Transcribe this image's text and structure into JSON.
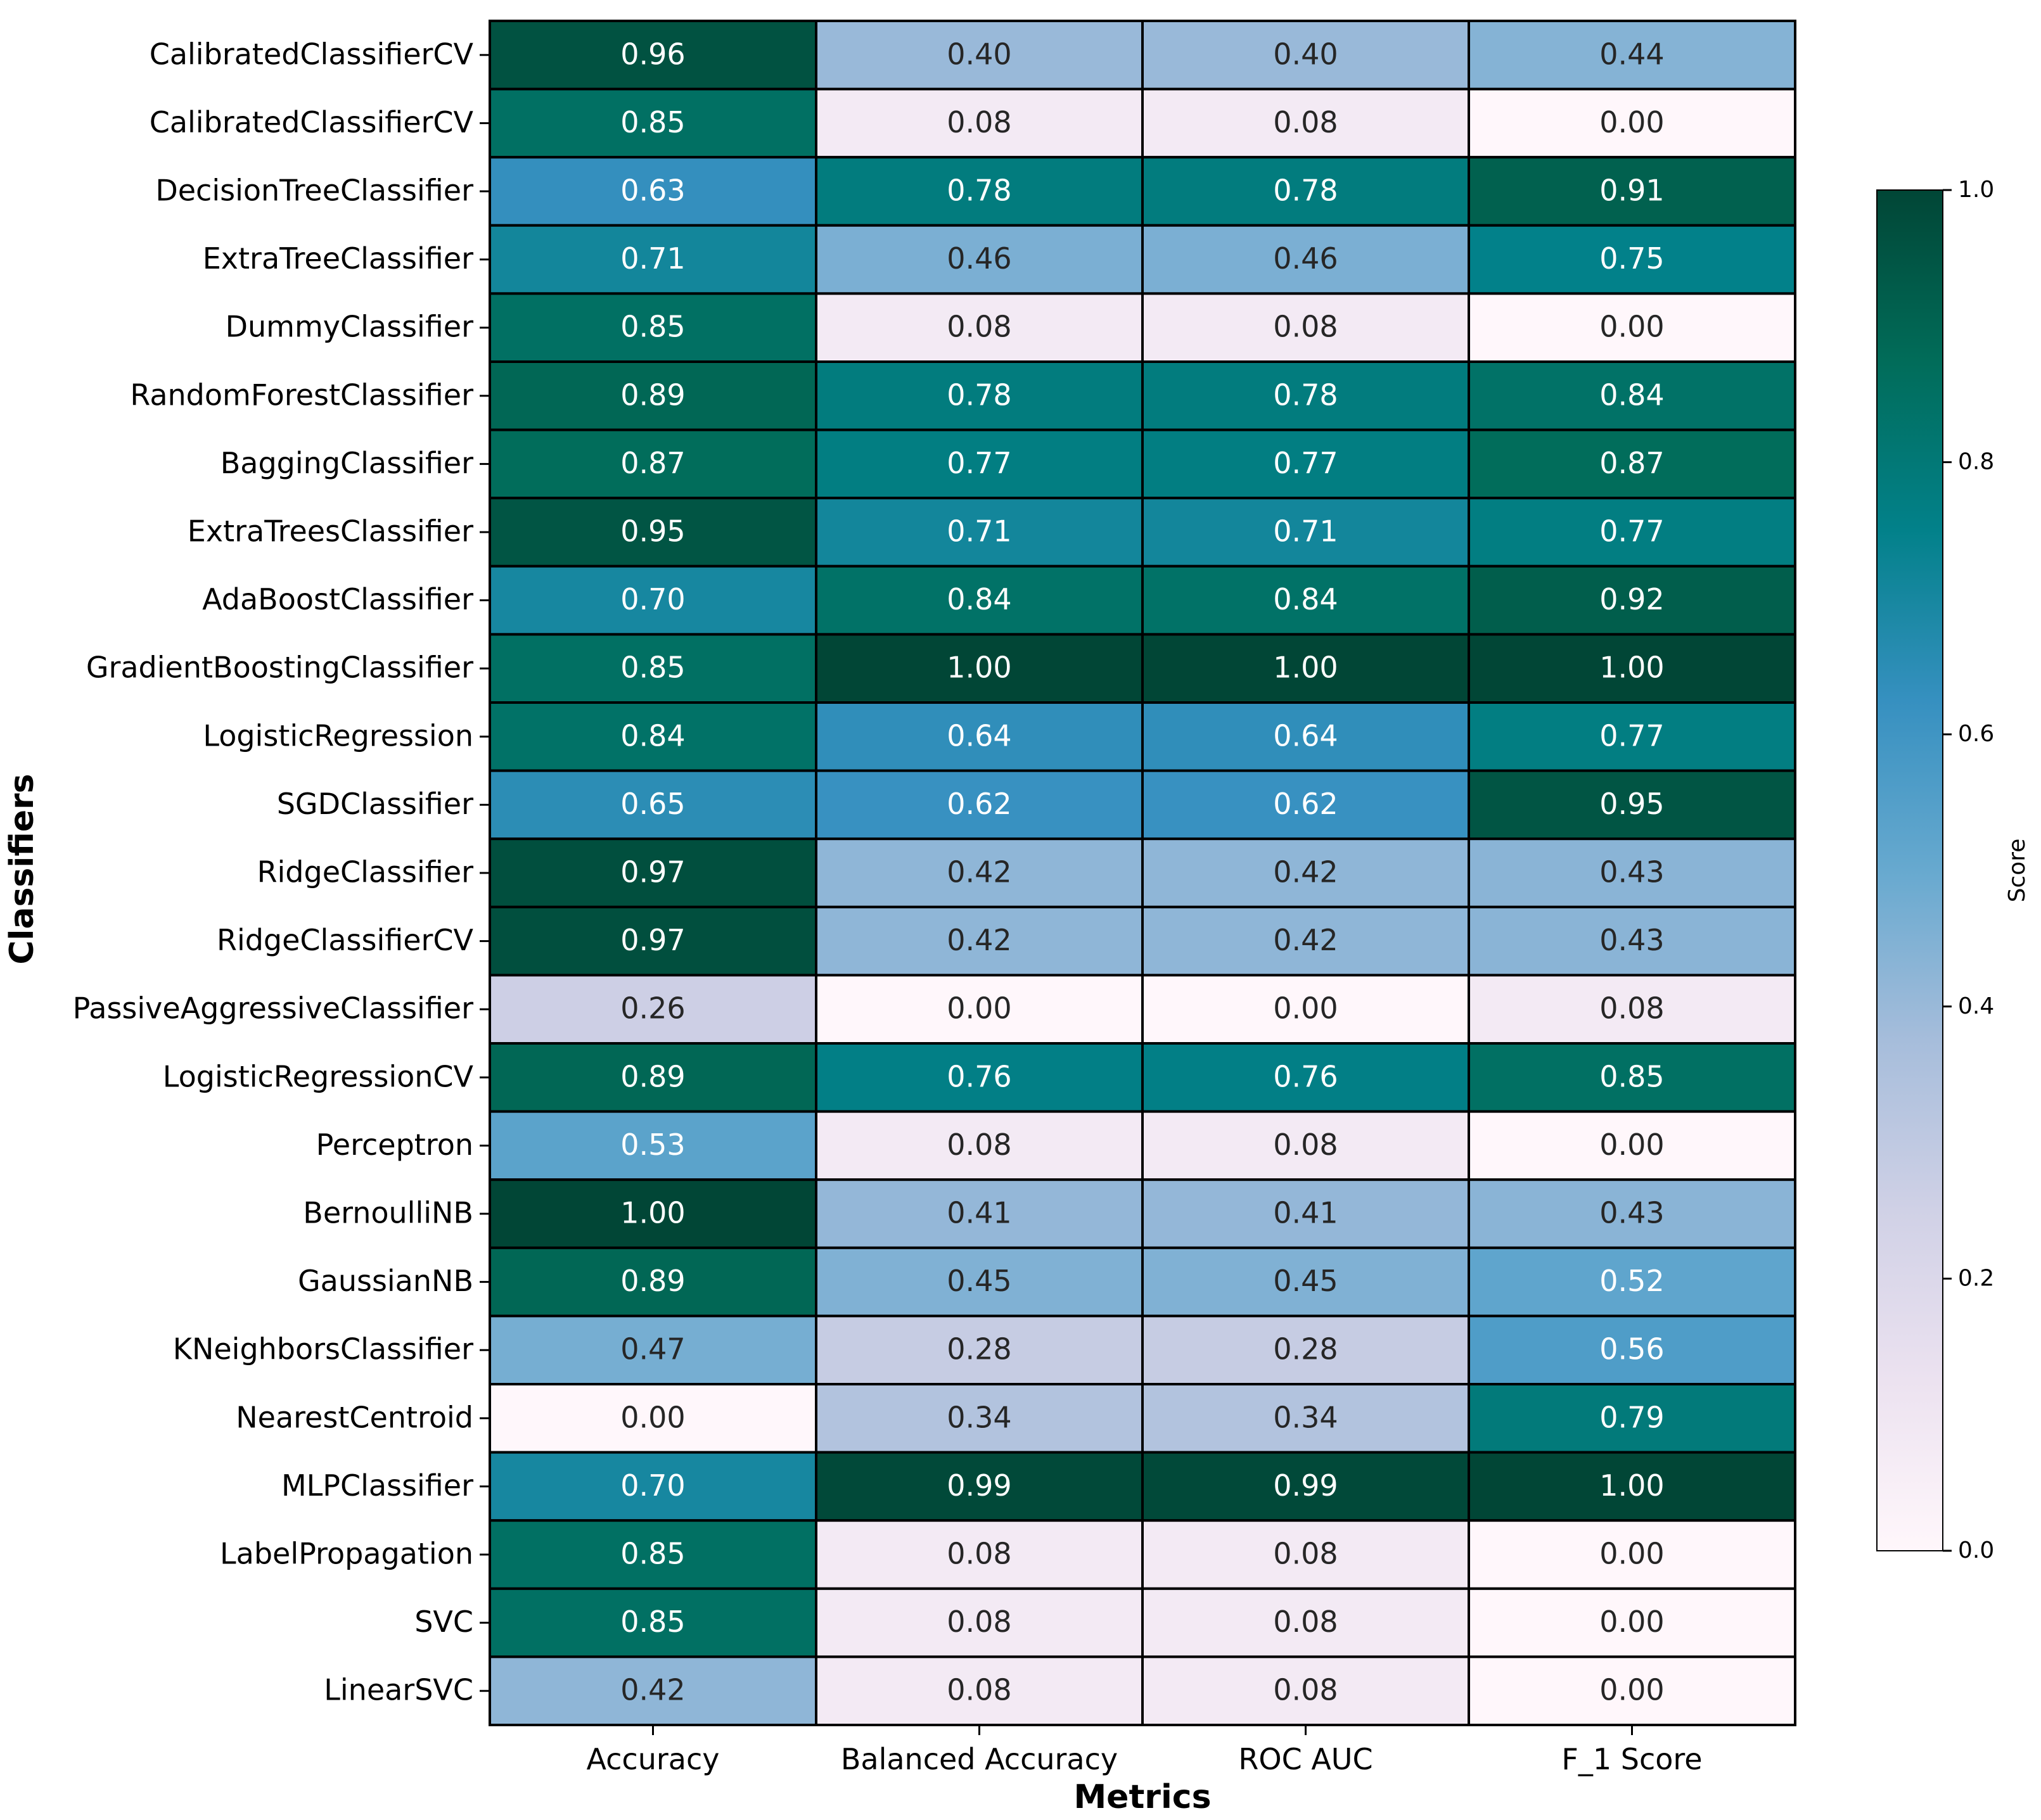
{
  "chart_data": {
    "type": "heatmap",
    "xlabel": "Metrics",
    "ylabel": "Classifiers",
    "colorbar": {
      "label": "Score",
      "range": [
        0.0,
        1.0
      ],
      "ticks": [
        "0.0",
        "0.2",
        "0.4",
        "0.6",
        "0.8",
        "1.0"
      ],
      "tick_values": [
        0.0,
        0.2,
        0.4,
        0.6,
        0.8,
        1.0
      ],
      "colormap": "PuBuGn"
    },
    "columns": [
      "Accuracy",
      "Balanced Accuracy",
      "ROC AUC",
      "F_1 Score"
    ],
    "rows": [
      "CalibratedClassifierCV",
      "CalibratedClassifierCV",
      "DecisionTreeClassifier",
      "ExtraTreeClassifier",
      "DummyClassifier",
      "RandomForestClassifier",
      "BaggingClassifier",
      "ExtraTreesClassifier",
      "AdaBoostClassifier",
      "GradientBoostingClassifier",
      "LogisticRegression",
      "SGDClassifier",
      "RidgeClassifier",
      "RidgeClassifierCV",
      "PassiveAggressiveClassifier",
      "LogisticRegressionCV",
      "Perceptron",
      "BernoulliNB",
      "GaussianNB",
      "KNeighborsClassifier",
      "NearestCentroid",
      "MLPClassifier",
      "LabelPropagation",
      "SVC",
      "LinearSVC"
    ],
    "values": [
      [
        "0.96",
        "0.40",
        "0.40",
        "0.44"
      ],
      [
        "0.85",
        "0.08",
        "0.08",
        "0.00"
      ],
      [
        "0.63",
        "0.78",
        "0.78",
        "0.91"
      ],
      [
        "0.71",
        "0.46",
        "0.46",
        "0.75"
      ],
      [
        "0.85",
        "0.08",
        "0.08",
        "0.00"
      ],
      [
        "0.89",
        "0.78",
        "0.78",
        "0.84"
      ],
      [
        "0.87",
        "0.77",
        "0.77",
        "0.87"
      ],
      [
        "0.95",
        "0.71",
        "0.71",
        "0.77"
      ],
      [
        "0.70",
        "0.84",
        "0.84",
        "0.92"
      ],
      [
        "0.85",
        "1.00",
        "1.00",
        "1.00"
      ],
      [
        "0.84",
        "0.64",
        "0.64",
        "0.77"
      ],
      [
        "0.65",
        "0.62",
        "0.62",
        "0.95"
      ],
      [
        "0.97",
        "0.42",
        "0.42",
        "0.43"
      ],
      [
        "0.97",
        "0.42",
        "0.42",
        "0.43"
      ],
      [
        "0.26",
        "0.00",
        "0.00",
        "0.08"
      ],
      [
        "0.89",
        "0.76",
        "0.76",
        "0.85"
      ],
      [
        "0.53",
        "0.08",
        "0.08",
        "0.00"
      ],
      [
        "1.00",
        "0.41",
        "0.41",
        "0.43"
      ],
      [
        "0.89",
        "0.45",
        "0.45",
        "0.52"
      ],
      [
        "0.47",
        "0.28",
        "0.28",
        "0.56"
      ],
      [
        "0.00",
        "0.34",
        "0.34",
        "0.79"
      ],
      [
        "0.70",
        "0.99",
        "0.99",
        "1.00"
      ],
      [
        "0.85",
        "0.08",
        "0.08",
        "0.00"
      ],
      [
        "0.85",
        "0.08",
        "0.08",
        "0.00"
      ],
      [
        "0.42",
        "0.08",
        "0.08",
        "0.00"
      ]
    ]
  }
}
